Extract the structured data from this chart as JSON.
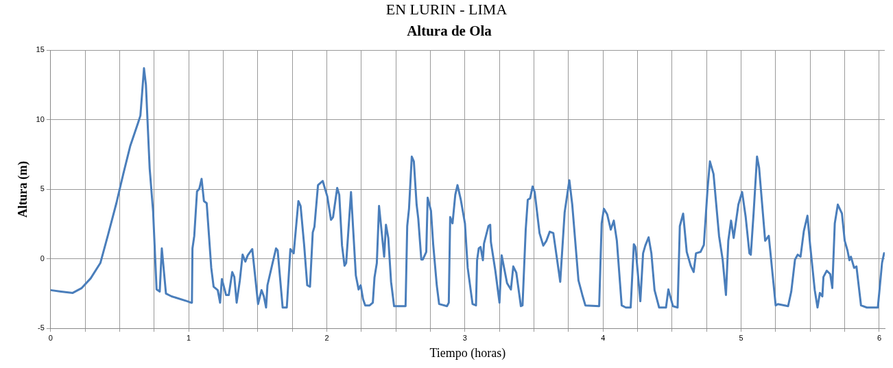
{
  "chart_data": {
    "type": "line",
    "title": "Altura de Ola",
    "annotations": [
      "EN LURIN - LIMA"
    ],
    "xlabel": "Tiempo (horas)",
    "ylabel": "Altura (m)",
    "xlim": [
      0,
      6.04
    ],
    "ylim": [
      -5,
      15
    ],
    "xticks": [
      0,
      {
        "value": 0.25,
        "label": null
      },
      {
        "value": 0.5,
        "label": null
      },
      {
        "value": 0.75,
        "label": null
      },
      1,
      {
        "value": 1.25,
        "label": null
      },
      {
        "value": 1.5,
        "label": null
      },
      {
        "value": 1.75,
        "label": null
      },
      2,
      {
        "value": 2.25,
        "label": null
      },
      {
        "value": 2.5,
        "label": null
      },
      {
        "value": 2.75,
        "label": null
      },
      3,
      {
        "value": 3.25,
        "label": null
      },
      {
        "value": 3.5,
        "label": null
      },
      {
        "value": 3.75,
        "label": null
      },
      4,
      {
        "value": 4.25,
        "label": null
      },
      {
        "value": 4.5,
        "label": null
      },
      {
        "value": 4.75,
        "label": null
      },
      5,
      {
        "value": 5.25,
        "label": null
      },
      {
        "value": 5.5,
        "label": null
      },
      {
        "value": 5.75,
        "label": null
      },
      6
    ],
    "yticks": [
      -5,
      0,
      5,
      10,
      15
    ],
    "grid": true,
    "legend": false,
    "marker": "none",
    "line_style": "solid",
    "series": [
      {
        "color": "#4a7ebb",
        "x": [
          0,
          0.075,
          0.16,
          0.225,
          0.29,
          0.36,
          0.415,
          0.476,
          0.526,
          0.576,
          0.634,
          0.65,
          0.676,
          0.69,
          0.717,
          0.742,
          0.767,
          0.79,
          0.805,
          0.835,
          0.876,
          0.99,
          1.016,
          1.023,
          1.027,
          1.04,
          1.06,
          1.077,
          1.093,
          1.11,
          1.13,
          1.163,
          1.18,
          1.21,
          1.227,
          1.24,
          1.27,
          1.29,
          1.315,
          1.33,
          1.347,
          1.37,
          1.39,
          1.41,
          1.427,
          1.46,
          1.502,
          1.527,
          1.544,
          1.56,
          1.57,
          1.607,
          1.632,
          1.644,
          1.68,
          1.71,
          1.736,
          1.76,
          1.794,
          1.81,
          1.836,
          1.858,
          1.878,
          1.898,
          1.91,
          1.936,
          1.97,
          2.003,
          2.03,
          2.045,
          2.075,
          2.09,
          2.11,
          2.128,
          2.14,
          2.175,
          2.21,
          2.23,
          2.245,
          2.262,
          2.278,
          2.31,
          2.333,
          2.345,
          2.362,
          2.378,
          2.415,
          2.428,
          2.445,
          2.465,
          2.487,
          2.57,
          2.582,
          2.595,
          2.615,
          2.63,
          2.65,
          2.662,
          2.684,
          2.695,
          2.72,
          2.73,
          2.754,
          2.77,
          2.796,
          2.813,
          2.87,
          2.883,
          2.893,
          2.91,
          2.93,
          2.946,
          2.97,
          3.0,
          3.02,
          3.055,
          3.08,
          3.088,
          3.1,
          3.113,
          3.13,
          3.138,
          3.17,
          3.183,
          3.188,
          3.22,
          3.25,
          3.266,
          3.305,
          3.333,
          3.35,
          3.372,
          3.405,
          3.417,
          3.44,
          3.455,
          3.472,
          3.49,
          3.505,
          3.54,
          3.567,
          3.59,
          3.614,
          3.64,
          3.69,
          3.722,
          3.756,
          3.777,
          3.822,
          3.85,
          3.872,
          3.972,
          3.99,
          4.006,
          4.03,
          4.056,
          4.078,
          4.1,
          4.135,
          4.165,
          4.2,
          4.223,
          4.235,
          4.27,
          4.29,
          4.306,
          4.33,
          4.35,
          4.373,
          4.406,
          4.456,
          4.473,
          4.506,
          4.54,
          4.556,
          4.58,
          4.606,
          4.635,
          4.656,
          4.673,
          4.706,
          4.73,
          4.757,
          4.774,
          4.8,
          4.84,
          4.866,
          4.89,
          4.907,
          4.927,
          4.946,
          4.98,
          5.007,
          5.033,
          5.06,
          5.07,
          5.09,
          5.115,
          5.13,
          5.174,
          5.2,
          5.25,
          5.266,
          5.34,
          5.363,
          5.39,
          5.41,
          5.43,
          5.454,
          5.48,
          5.5,
          5.533,
          5.553,
          5.57,
          5.588,
          5.596,
          5.62,
          5.645,
          5.66,
          5.678,
          5.7,
          5.73,
          5.75,
          5.77,
          5.784,
          5.795,
          5.818,
          5.835,
          5.868,
          5.91,
          5.99,
          6.02,
          6.035
        ],
        "values": [
          -2.25,
          -2.35,
          -2.45,
          -2.1,
          -1.4,
          -0.3,
          1.7,
          4.0,
          6.1,
          8.1,
          9.8,
          10.3,
          13.7,
          12.5,
          6.5,
          3.4,
          -2.2,
          -2.35,
          0.75,
          -2.5,
          -2.7,
          -3.05,
          -3.15,
          -3.15,
          0.75,
          1.65,
          4.85,
          5.05,
          5.75,
          4.15,
          4.0,
          -0.65,
          -2.0,
          -2.25,
          -3.15,
          -1.45,
          -2.6,
          -2.6,
          -0.95,
          -1.3,
          -3.15,
          -1.55,
          0.3,
          -0.2,
          0.25,
          0.7,
          -3.25,
          -2.25,
          -2.7,
          -3.5,
          -1.9,
          -0.3,
          0.75,
          0.6,
          -3.5,
          -3.5,
          0.7,
          0.4,
          4.15,
          3.8,
          0.95,
          -1.9,
          -2.0,
          1.9,
          2.3,
          5.3,
          5.6,
          4.5,
          2.8,
          3.0,
          5.1,
          4.6,
          0.95,
          -0.5,
          -0.3,
          4.8,
          -1.2,
          -2.2,
          -1.9,
          -2.9,
          -3.35,
          -3.35,
          -3.15,
          -1.35,
          -0.3,
          3.8,
          0.15,
          2.45,
          1.5,
          -1.65,
          -3.4,
          -3.4,
          2.35,
          3.6,
          7.35,
          7.0,
          3.9,
          2.9,
          -0.05,
          -0.05,
          0.5,
          4.4,
          3.45,
          1.05,
          -1.9,
          -3.25,
          -3.4,
          -3.15,
          3.0,
          2.55,
          4.6,
          5.3,
          4.25,
          2.55,
          -0.65,
          -3.25,
          -3.35,
          -0.1,
          0.75,
          0.85,
          -0.1,
          1.1,
          2.35,
          2.45,
          1.2,
          -0.85,
          -3.15,
          0.25,
          -1.75,
          -2.2,
          -0.55,
          -1.0,
          -3.4,
          -3.35,
          2.1,
          4.25,
          4.35,
          5.2,
          4.8,
          1.85,
          0.95,
          1.3,
          1.95,
          1.85,
          -1.65,
          3.35,
          5.65,
          3.9,
          -1.55,
          -2.6,
          -3.35,
          -3.4,
          2.55,
          3.6,
          3.2,
          2.1,
          2.75,
          1.3,
          -3.35,
          -3.5,
          -3.5,
          1.05,
          0.85,
          -3.05,
          0.4,
          0.95,
          1.55,
          0.4,
          -2.25,
          -3.5,
          -3.5,
          -2.2,
          -3.4,
          -3.5,
          2.35,
          3.25,
          0.5,
          -0.5,
          -0.95,
          0.4,
          0.5,
          1.0,
          5.05,
          7.0,
          6.1,
          1.65,
          -0.05,
          -2.6,
          1.3,
          2.75,
          1.5,
          3.9,
          4.8,
          3.0,
          0.4,
          0.3,
          3.25,
          7.35,
          6.55,
          1.3,
          1.65,
          -3.35,
          -3.25,
          -3.4,
          -2.35,
          -0.05,
          0.3,
          0.15,
          2.0,
          3.1,
          0.95,
          -2.25,
          -3.5,
          -2.45,
          -2.7,
          -1.3,
          -0.85,
          -1.1,
          -2.1,
          2.55,
          3.9,
          3.25,
          1.3,
          0.6,
          -0.1,
          0.15,
          -0.65,
          -0.55,
          -3.35,
          -3.5,
          -3.5,
          -0.3,
          0.4
        ]
      }
    ]
  }
}
